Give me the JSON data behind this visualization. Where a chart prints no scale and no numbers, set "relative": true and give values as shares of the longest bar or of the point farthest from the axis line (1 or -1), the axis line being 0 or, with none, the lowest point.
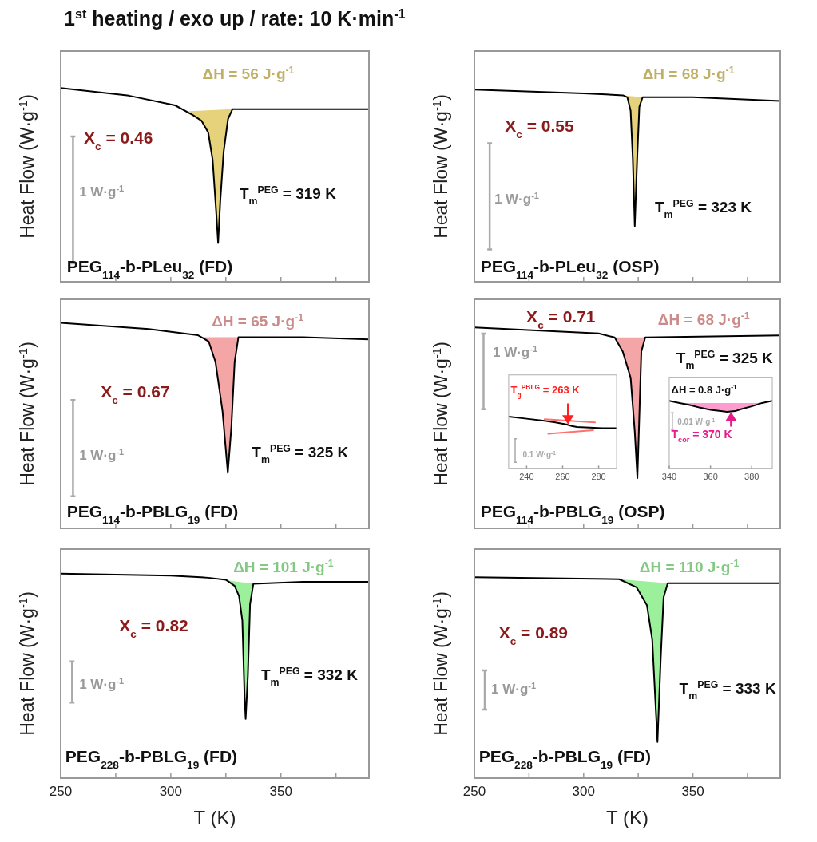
{
  "chart_data": [
    {
      "type": "line",
      "relative": true,
      "title": "1$^{st}$ heating / exo up / rate: 10 K·min$^{-1}$",
      "ylabel": "Heat Flow (W·g$^{-1}$)",
      "xlim": [
        250,
        390
      ],
      "xticks": [
        250,
        {
          "value": 275,
          "label": null
        },
        300,
        {
          "value": 325,
          "label": null
        },
        350,
        {
          "value": 375,
          "label": null
        }
      ],
      "tick_labels": false,
      "series": [
        {
          "type": "area",
          "color": "#e6d27a",
          "x": [
            308,
            310,
            314,
            317,
            319,
            320.5,
            321.5,
            322.5,
            324,
            326,
            328
          ],
          "values": [
            0.88,
            0.86,
            0.83,
            0.77,
            0.63,
            0.38,
            0.2,
            0.42,
            0.67,
            0.84,
            0.89
          ]
        },
        {
          "color": "#000000",
          "x": [
            250,
            281,
            302,
            310,
            314,
            317,
            319,
            320.5,
            321.5,
            322.5,
            324,
            326,
            328,
            340,
            390
          ],
          "values": [
            1,
            0.96,
            0.91,
            0.86,
            0.83,
            0.77,
            0.63,
            0.38,
            0.2,
            0.42,
            0.67,
            0.84,
            0.89,
            0.89,
            0.89
          ]
        }
      ],
      "annotations": [
        "ΔH = 56 J·g$^{-1}$",
        "X$_{c}$ = 0.46",
        "T$_{m}$$^{PEG}$ = 319 K",
        "PEG$_{114}$-b-PLeu$_{32}$ (FD)",
        "1 W·g$^{-1}$"
      ]
    },
    {
      "type": "line",
      "relative": true,
      "ylabel": "Heat Flow (W·g$^{-1}$)",
      "xlim": [
        250,
        390
      ],
      "xticks": [
        250,
        {
          "value": 275,
          "label": null
        },
        300,
        {
          "value": 325,
          "label": null
        },
        350,
        {
          "value": 375,
          "label": null
        }
      ],
      "tick_labels": false,
      "series": [
        {
          "type": "area",
          "color": "#e6d27a",
          "x": [
            318,
            320,
            321.5,
            322.5,
            323.4,
            324.5,
            325.5,
            327
          ],
          "values": [
            0.97,
            0.96,
            0.89,
            0.64,
            0.29,
            0.64,
            0.91,
            0.96
          ]
        },
        {
          "color": "#000000",
          "x": [
            250,
            300,
            318,
            320,
            321.5,
            322.5,
            323.4,
            324.5,
            325.5,
            327,
            350,
            390
          ],
          "values": [
            1,
            0.98,
            0.97,
            0.96,
            0.89,
            0.64,
            0.29,
            0.64,
            0.91,
            0.96,
            0.96,
            0.94
          ]
        }
      ],
      "annotations": [
        "ΔH = 68 J·g$^{-1}$",
        "X$_{c}$ = 0.55",
        "T$_{m}$$^{PEG}$ = 323 K",
        "PEG$_{114}$-b-PLeu$_{32}$ (OSP)",
        "1 W·g$^{-1}$"
      ]
    },
    {
      "type": "line",
      "relative": true,
      "ylabel": "Heat Flow (W·g$^{-1}$)",
      "xlim": [
        250,
        390
      ],
      "xticks": [
        250,
        {
          "value": 275,
          "label": null
        },
        300,
        {
          "value": 325,
          "label": null
        },
        350,
        {
          "value": 375,
          "label": null
        }
      ],
      "tick_labels": false,
      "series": [
        {
          "type": "area",
          "color": "#f4a6a6",
          "x": [
            314,
            317.2,
            320.3,
            323.5,
            325.9,
            327.5,
            329,
            330.7
          ],
          "values": [
            0.93,
            0.91,
            0.81,
            0.57,
            0.27,
            0.49,
            0.81,
            0.93
          ]
        },
        {
          "color": "#000000",
          "x": [
            250,
            290,
            312.4,
            317.2,
            320.3,
            323.5,
            325.9,
            327.5,
            329,
            330.7,
            360,
            390
          ],
          "values": [
            1,
            0.97,
            0.94,
            0.91,
            0.81,
            0.57,
            0.27,
            0.49,
            0.81,
            0.93,
            0.93,
            0.92
          ]
        }
      ],
      "annotations": [
        "ΔH = 65 J·g$^{-1}$",
        "X$_{c}$ = 0.67",
        "T$_{m}$$^{PEG}$ = 325 K",
        "PEG$_{114}$-b-PBLG$_{19}$ (FD)",
        "1 W·g$^{-1}$"
      ]
    },
    {
      "type": "line",
      "relative": true,
      "ylabel": "Heat Flow (W·g$^{-1}$)",
      "xlim": [
        250,
        390
      ],
      "xticks": [
        250,
        {
          "value": 275,
          "label": null
        },
        300,
        {
          "value": 325,
          "label": null
        },
        350,
        {
          "value": 375,
          "label": null
        }
      ],
      "tick_labels": false,
      "series": [
        {
          "type": "area",
          "color": "#f4a6a6",
          "x": [
            314.2,
            317.9,
            321.5,
            323.4,
            324.6,
            326.4,
            328.2
          ],
          "values": [
            0.95,
            0.88,
            0.75,
            0.48,
            0.25,
            0.88,
            0.95
          ]
        },
        {
          "color": "#000000",
          "x": [
            250,
            306.9,
            314.2,
            317.9,
            321.5,
            323.4,
            324.6,
            326.4,
            328.2,
            390
          ],
          "values": [
            1,
            0.97,
            0.95,
            0.88,
            0.75,
            0.48,
            0.25,
            0.88,
            0.95,
            0.96
          ]
        }
      ],
      "annotations": [
        "ΔH = 68 J·g$^{-1}$",
        "X$_{c}$ = 0.71",
        "T$_{m}$$^{PEG}$ = 325 K",
        "PEG$_{114}$-b-PBLG$_{19}$ (OSP)",
        "1 W·g$^{-1}$"
      ]
    },
    {
      "type": "line",
      "relative": true,
      "xlim": [
        230,
        290
      ],
      "xticks": [
        240,
        260,
        280
      ],
      "tick_labels": "x",
      "series": [
        {
          "color": "#000000",
          "x": [
            230,
            240,
            250,
            256,
            262,
            265,
            268,
            275,
            282,
            290
          ],
          "values": [
            1,
            0.96,
            0.92,
            0.89,
            0.85,
            0.82,
            0.8,
            0.79,
            0.78,
            0.78
          ]
        },
        {
          "color": "#ff7070",
          "x": [
            250,
            278
          ],
          "values": [
            0.95,
            0.89
          ]
        },
        {
          "color": "#ff7070",
          "x": [
            252,
            277
          ],
          "values": [
            0.67,
            0.74
          ]
        }
      ],
      "annotations": [
        {
          "text": "T$_{g}$$^{PBLG}$ = 263 K",
          "x": 263,
          "y": 0.84
        },
        "0.1 W·g$^{-1}$"
      ]
    },
    {
      "type": "line",
      "relative": true,
      "xlim": [
        340,
        390
      ],
      "xticks": [
        340,
        360,
        380
      ],
      "tick_labels": "x",
      "series": [
        {
          "type": "area",
          "color": "#ff9ccf",
          "x": [
            345,
            350,
            355,
            360,
            365,
            368,
            372,
            375,
            380,
            385
          ],
          "values": [
            0.97,
            0.94,
            0.9,
            0.87,
            0.85,
            0.84,
            0.85,
            0.88,
            0.92,
            0.97
          ]
        },
        {
          "color": "#000000",
          "x": [
            340,
            345,
            350,
            355,
            360,
            365,
            368,
            372,
            375,
            380,
            385,
            390
          ],
          "values": [
            1,
            0.97,
            0.94,
            0.9,
            0.87,
            0.85,
            0.84,
            0.85,
            0.88,
            0.92,
            0.97,
            1
          ]
        }
      ],
      "annotations": [
        "ΔH = 0.8 J·g$^{-1}$",
        "0.01 W·g$^{-1}$",
        {
          "text": "T$_{cor}$ = 370 K",
          "x": 370,
          "y": 0.845
        }
      ]
    },
    {
      "type": "line",
      "relative": true,
      "ylabel": "Heat Flow (W·g$^{-1}$)",
      "xlabel": "T (K)",
      "xlim": [
        250,
        390
      ],
      "xticks": [
        250,
        {
          "value": 275,
          "label": null
        },
        300,
        {
          "value": 325,
          "label": null
        },
        350,
        {
          "value": 375,
          "label": null
        }
      ],
      "tick_labels": "x",
      "series": [
        {
          "type": "area",
          "color": "#9cf09c",
          "x": [
            317,
            325,
            329,
            331,
            332.5,
            333.5,
            334,
            335,
            336,
            337.5
          ],
          "values": [
            0.98,
            0.97,
            0.94,
            0.89,
            0.77,
            0.4,
            0.29,
            0.5,
            0.85,
            0.95
          ]
        },
        {
          "color": "#000000",
          "x": [
            250,
            300,
            317,
            325,
            329,
            331,
            332.5,
            333.5,
            334,
            335,
            336,
            337.5,
            360,
            390
          ],
          "values": [
            1,
            0.99,
            0.98,
            0.97,
            0.94,
            0.89,
            0.77,
            0.4,
            0.29,
            0.5,
            0.85,
            0.95,
            0.96,
            0.96
          ]
        }
      ],
      "annotations": [
        "ΔH = 101 J·g$^{-1}$",
        "X$_{c}$ = 0.82",
        "T$_{m}$$^{PEG}$ = 332 K",
        "PEG$_{228}$-b-PBLG$_{19}$ (FD)",
        "1 W·g$^{-1}$"
      ]
    },
    {
      "type": "line",
      "relative": true,
      "ylabel": "Heat Flow (W·g$^{-1}$)",
      "xlabel": "T (K)",
      "xlim": [
        250,
        390
      ],
      "xticks": [
        250,
        {
          "value": 275,
          "label": null
        },
        300,
        {
          "value": 325,
          "label": null
        },
        350,
        {
          "value": 375,
          "label": null
        }
      ],
      "tick_labels": "x",
      "series": [
        {
          "type": "area",
          "color": "#9cf09c",
          "x": [
            316.3,
            324.2,
            329,
            331.4,
            333.8,
            335.3,
            336.6,
            338.5
          ],
          "values": [
            0.99,
            0.95,
            0.86,
            0.69,
            0.18,
            0.6,
            0.9,
            0.97
          ]
        },
        {
          "color": "#000000",
          "x": [
            250,
            316.3,
            324.2,
            329,
            331.4,
            333.8,
            335.3,
            336.6,
            338.5,
            390
          ],
          "values": [
            1,
            0.99,
            0.95,
            0.86,
            0.69,
            0.18,
            0.6,
            0.9,
            0.97,
            0.97
          ]
        }
      ],
      "annotations": [
        "ΔH = 110 J·g$^{-1}$",
        "X$_{c}$ = 0.89",
        "T$_{m}$$^{PEG}$ = 333 K",
        "PEG$_{228}$-b-PBLG$_{19}$ (FD)",
        "1 W·g$^{-1}$"
      ]
    }
  ]
}
